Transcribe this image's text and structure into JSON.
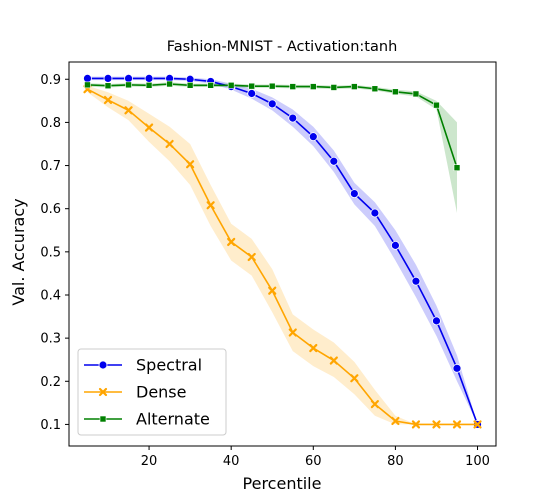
{
  "chart_data": {
    "type": "line",
    "title": "Fashion-MNIST - Activation:tanh",
    "xlabel": "Percentile",
    "ylabel": "Val. Accuracy",
    "xlim": [
      0.5,
      104.5
    ],
    "ylim": [
      0.05,
      0.94
    ],
    "xticks": [
      20,
      40,
      60,
      80,
      100
    ],
    "yticks": [
      0.1,
      0.2,
      0.3,
      0.4,
      0.5,
      0.6,
      0.7,
      0.8,
      0.9
    ],
    "grid": false,
    "legend_position": "bottom-left",
    "series": [
      {
        "name": "Spectral",
        "color": "#0000ee",
        "marker": "circle",
        "x": [
          5,
          10,
          15,
          20,
          25,
          30,
          35,
          40,
          45,
          50,
          55,
          60,
          65,
          70,
          75,
          80,
          85,
          90,
          95,
          100
        ],
        "y": [
          0.902,
          0.902,
          0.902,
          0.902,
          0.902,
          0.9,
          0.895,
          0.883,
          0.867,
          0.843,
          0.81,
          0.767,
          0.71,
          0.635,
          0.59,
          0.515,
          0.432,
          0.34,
          0.23,
          0.1
        ],
        "band_low": [
          0.898,
          0.898,
          0.898,
          0.898,
          0.898,
          0.896,
          0.89,
          0.876,
          0.855,
          0.828,
          0.79,
          0.745,
          0.685,
          0.61,
          0.56,
          0.48,
          0.395,
          0.305,
          0.2,
          0.1
        ],
        "band_high": [
          0.906,
          0.906,
          0.906,
          0.906,
          0.906,
          0.904,
          0.9,
          0.89,
          0.878,
          0.858,
          0.83,
          0.79,
          0.735,
          0.66,
          0.615,
          0.55,
          0.47,
          0.375,
          0.26,
          0.1
        ]
      },
      {
        "name": "Dense",
        "color": "#ffa500",
        "marker": "x",
        "x": [
          5,
          10,
          15,
          20,
          25,
          30,
          35,
          40,
          45,
          50,
          55,
          60,
          65,
          70,
          75,
          80,
          85,
          90,
          95,
          100
        ],
        "y": [
          0.877,
          0.852,
          0.828,
          0.788,
          0.75,
          0.703,
          0.608,
          0.523,
          0.488,
          0.41,
          0.313,
          0.277,
          0.248,
          0.207,
          0.147,
          0.108,
          0.1,
          0.1,
          0.1,
          0.1
        ],
        "band_low": [
          0.87,
          0.835,
          0.805,
          0.755,
          0.71,
          0.655,
          0.56,
          0.48,
          0.445,
          0.36,
          0.27,
          0.235,
          0.21,
          0.17,
          0.12,
          0.1,
          0.1,
          0.1,
          0.1,
          0.1
        ],
        "band_high": [
          0.885,
          0.87,
          0.85,
          0.82,
          0.79,
          0.75,
          0.655,
          0.565,
          0.53,
          0.46,
          0.355,
          0.32,
          0.29,
          0.245,
          0.18,
          0.12,
          0.1,
          0.1,
          0.1,
          0.1
        ]
      },
      {
        "name": "Alternate",
        "color": "#008000",
        "marker": "square",
        "x": [
          5,
          10,
          15,
          20,
          25,
          30,
          35,
          40,
          45,
          50,
          55,
          60,
          65,
          70,
          75,
          80,
          85,
          90,
          95
        ],
        "y": [
          0.887,
          0.885,
          0.887,
          0.886,
          0.889,
          0.886,
          0.886,
          0.886,
          0.884,
          0.884,
          0.883,
          0.883,
          0.881,
          0.883,
          0.878,
          0.871,
          0.866,
          0.84,
          0.695
        ],
        "band_low": [
          0.883,
          0.881,
          0.883,
          0.882,
          0.885,
          0.882,
          0.882,
          0.882,
          0.88,
          0.88,
          0.879,
          0.879,
          0.877,
          0.879,
          0.874,
          0.866,
          0.86,
          0.83,
          0.59
        ],
        "band_high": [
          0.891,
          0.889,
          0.891,
          0.89,
          0.893,
          0.89,
          0.89,
          0.89,
          0.888,
          0.888,
          0.887,
          0.887,
          0.885,
          0.887,
          0.882,
          0.876,
          0.872,
          0.85,
          0.8
        ]
      }
    ]
  }
}
